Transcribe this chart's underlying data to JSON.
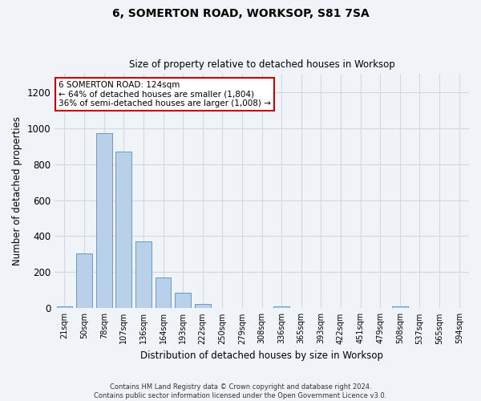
{
  "title1": "6, SOMERTON ROAD, WORKSOP, S81 7SA",
  "title2": "Size of property relative to detached houses in Worksop",
  "xlabel": "Distribution of detached houses by size in Worksop",
  "ylabel": "Number of detached properties",
  "bar_color": "#b8d0e8",
  "bar_edge_color": "#6699cc",
  "categories": [
    "21sqm",
    "50sqm",
    "78sqm",
    "107sqm",
    "136sqm",
    "164sqm",
    "193sqm",
    "222sqm",
    "250sqm",
    "279sqm",
    "308sqm",
    "336sqm",
    "365sqm",
    "393sqm",
    "422sqm",
    "451sqm",
    "479sqm",
    "508sqm",
    "537sqm",
    "565sqm",
    "594sqm"
  ],
  "values": [
    12,
    305,
    970,
    868,
    370,
    170,
    88,
    25,
    0,
    0,
    0,
    12,
    0,
    0,
    0,
    0,
    0,
    12,
    0,
    0,
    0
  ],
  "ylim": [
    0,
    1300
  ],
  "yticks": [
    0,
    200,
    400,
    600,
    800,
    1000,
    1200
  ],
  "annotation_line1": "6 SOMERTON ROAD: 124sqm",
  "annotation_line2": "← 64% of detached houses are smaller (1,804)",
  "annotation_line3": "36% of semi-detached houses are larger (1,008) →",
  "annotation_box_color": "#ffffff",
  "annotation_box_edge": "#cc0000",
  "footer_text": "Contains HM Land Registry data © Crown copyright and database right 2024.\nContains public sector information licensed under the Open Government Licence v3.0.",
  "background_color": "#f0f4f8",
  "grid_color": "#d0d8e0"
}
